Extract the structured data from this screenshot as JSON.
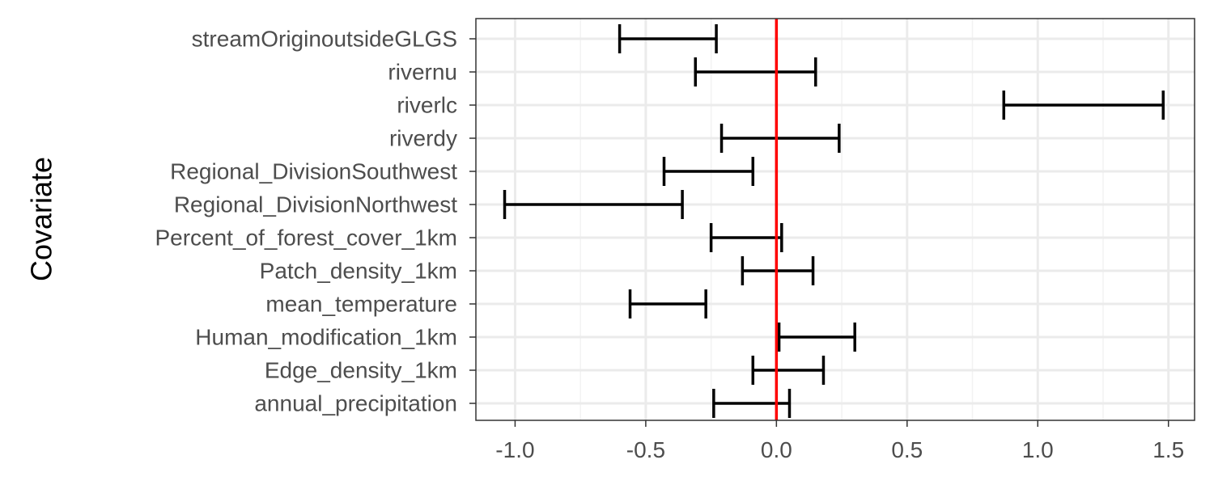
{
  "chart_data": {
    "type": "errorbar",
    "title": "",
    "xlabel": "",
    "ylabel": "Covariate",
    "xlim": [
      -1.15,
      1.6
    ],
    "x_ticks": [
      -1.0,
      -0.5,
      0.0,
      0.5,
      1.0,
      1.5
    ],
    "x_tick_labels": [
      "-1.0",
      "-0.5",
      "0.0",
      "0.5",
      "1.0",
      "1.5"
    ],
    "reference_line": {
      "x": 0,
      "color": "#ff0000"
    },
    "grid": true,
    "categories": [
      "streamOriginoutsideGLGS",
      "rivernu",
      "riverlc",
      "riverdy",
      "Regional_DivisionSouthwest",
      "Regional_DivisionNorthwest",
      "Percent_of_forest_cover_1km",
      "Patch_density_1km",
      "mean_temperature",
      "Human_modification_1km",
      "Edge_density_1km",
      "annual_precipitation"
    ],
    "intervals": [
      {
        "low": -0.6,
        "high": -0.23
      },
      {
        "low": -0.31,
        "high": 0.15
      },
      {
        "low": 0.87,
        "high": 1.48
      },
      {
        "low": -0.21,
        "high": 0.24
      },
      {
        "low": -0.43,
        "high": -0.09
      },
      {
        "low": -1.04,
        "high": -0.36
      },
      {
        "low": -0.25,
        "high": 0.02
      },
      {
        "low": -0.13,
        "high": 0.14
      },
      {
        "low": -0.56,
        "high": -0.27
      },
      {
        "low": 0.01,
        "high": 0.3
      },
      {
        "low": -0.09,
        "high": 0.18
      },
      {
        "low": -0.24,
        "high": 0.05
      }
    ]
  }
}
